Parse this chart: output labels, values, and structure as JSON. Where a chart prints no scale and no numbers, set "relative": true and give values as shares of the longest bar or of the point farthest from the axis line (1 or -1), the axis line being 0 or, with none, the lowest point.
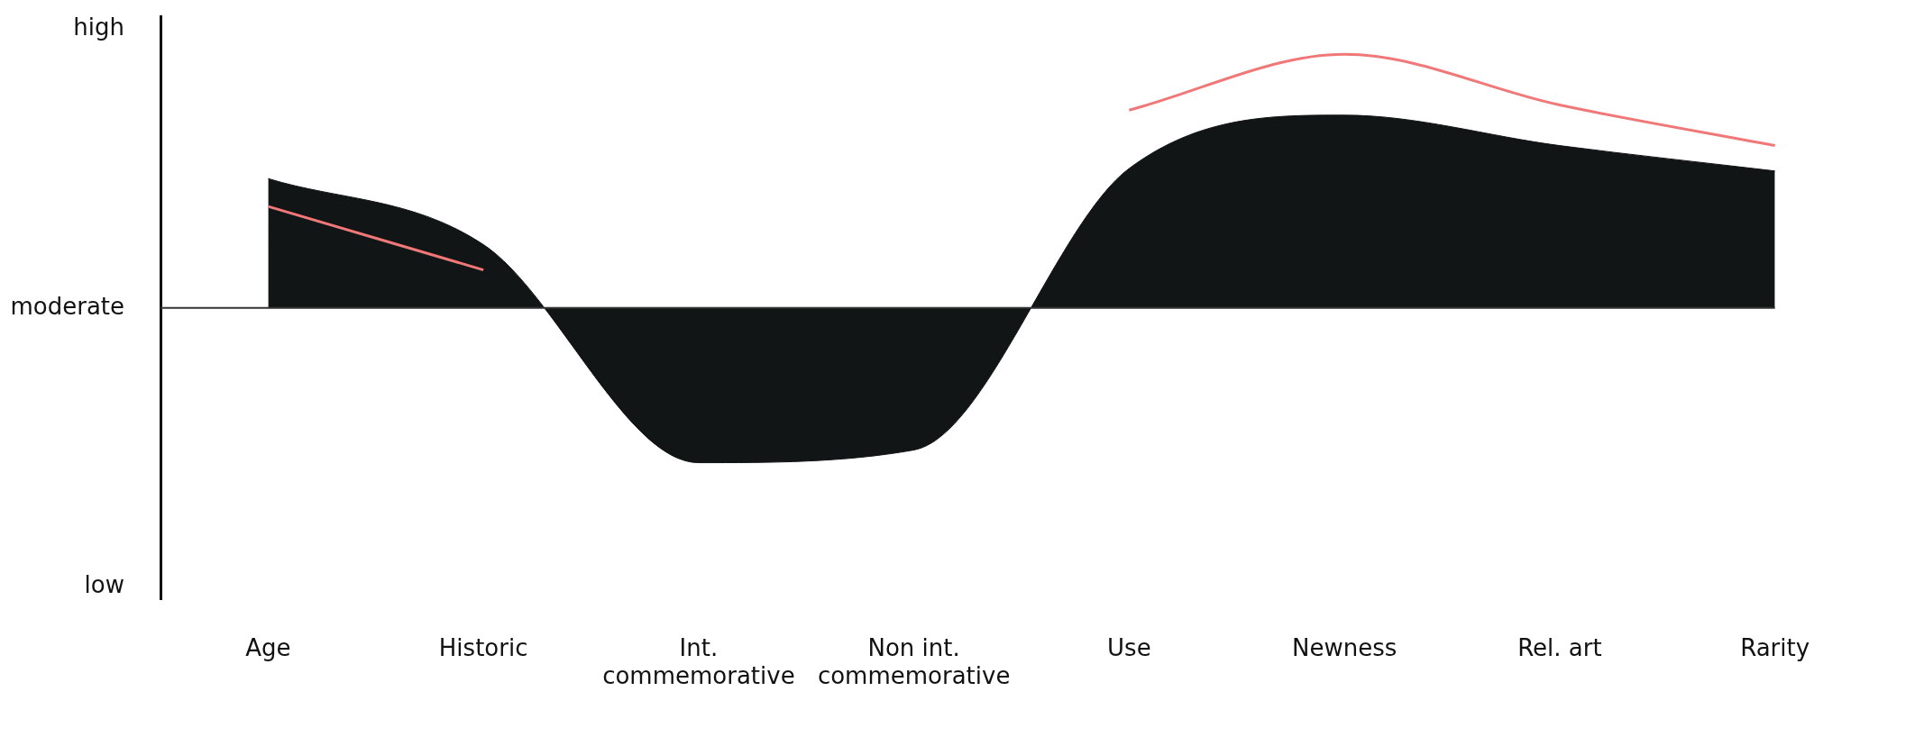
{
  "chart_data": {
    "type": "area",
    "relative": true,
    "categories": [
      "Age",
      "Historic",
      "Int. commemorative",
      "Non int. commemorative",
      "Use",
      "Newness",
      "Rel. art",
      "Rarity"
    ],
    "series": [
      {
        "color": "#121516",
        "values": [
          0.51,
          0.25,
          -0.61,
          -0.56,
          0.55,
          0.76,
          0.64,
          0.54
        ]
      },
      {
        "type": "line",
        "color": "#f07878",
        "values": [
          0.4,
          0.15,
          null,
          null,
          0.78,
          1,
          0.8,
          0.64
        ]
      }
    ],
    "annotations": [
      "high",
      "moderate",
      "low"
    ],
    "legend": false
  }
}
